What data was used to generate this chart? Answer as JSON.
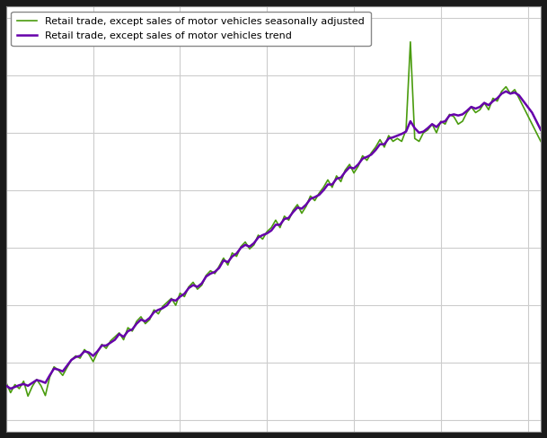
{
  "legend_sa": "Retail trade, except sales of motor vehicles seasonally adjusted",
  "legend_trend": "Retail trade, except sales of motor vehicles trend",
  "color_sa": "#4a9c0e",
  "color_trend": "#6600aa",
  "background_color": "#ffffff",
  "grid_color": "#cccccc",
  "linewidth_sa": 1.2,
  "linewidth_trend": 1.8,
  "seasonally_adjusted": [
    96.5,
    94.8,
    96.2,
    95.5,
    96.8,
    94.2,
    95.9,
    97.1,
    96.0,
    94.3,
    97.5,
    99.3,
    98.7,
    97.8,
    99.2,
    100.5,
    101.2,
    100.8,
    102.3,
    101.5,
    100.2,
    101.8,
    103.2,
    102.5,
    103.8,
    104.5,
    105.2,
    104.0,
    106.1,
    105.5,
    107.2,
    108.0,
    106.8,
    107.5,
    109.2,
    108.5,
    109.8,
    110.5,
    111.2,
    110.0,
    112.1,
    111.5,
    113.2,
    114.0,
    112.8,
    113.5,
    115.2,
    116.0,
    115.5,
    116.8,
    118.2,
    117.0,
    119.1,
    118.5,
    120.2,
    121.0,
    119.8,
    120.5,
    122.2,
    121.5,
    122.8,
    123.5,
    124.8,
    123.5,
    125.5,
    124.8,
    126.5,
    127.5,
    126.0,
    127.2,
    129.0,
    128.2,
    129.5,
    130.5,
    131.8,
    130.5,
    132.5,
    131.5,
    133.5,
    134.5,
    133.0,
    134.2,
    136.0,
    135.2,
    136.5,
    137.5,
    138.8,
    137.5,
    139.5,
    138.5,
    139.0,
    138.5,
    140.5,
    155.8,
    139.0,
    138.5,
    140.0,
    140.5,
    141.5,
    140.0,
    142.0,
    141.5,
    143.2,
    142.8,
    141.5,
    142.0,
    143.5,
    144.5,
    143.5,
    144.0,
    145.2,
    144.0,
    146.0,
    145.5,
    147.2,
    148.0,
    146.8,
    147.5,
    146.0,
    144.5,
    143.0,
    141.5,
    140.0,
    138.5
  ],
  "trend": [
    96.0,
    95.5,
    95.8,
    96.1,
    96.3,
    96.0,
    96.5,
    97.0,
    96.8,
    96.5,
    97.8,
    99.0,
    98.8,
    98.5,
    99.5,
    100.5,
    101.0,
    101.2,
    102.0,
    101.8,
    101.2,
    102.0,
    103.0,
    103.0,
    103.5,
    104.0,
    105.0,
    104.5,
    105.5,
    105.8,
    106.8,
    107.5,
    107.2,
    107.8,
    108.8,
    109.2,
    109.5,
    110.0,
    111.0,
    110.8,
    111.5,
    112.0,
    113.0,
    113.5,
    113.2,
    113.8,
    115.0,
    115.5,
    115.8,
    116.5,
    117.8,
    117.5,
    118.5,
    119.0,
    120.0,
    120.5,
    120.2,
    120.8,
    121.8,
    122.2,
    122.5,
    123.0,
    124.0,
    124.0,
    125.0,
    125.2,
    126.2,
    127.0,
    126.8,
    127.5,
    128.5,
    128.8,
    129.2,
    130.0,
    131.0,
    131.0,
    132.0,
    132.2,
    133.2,
    134.0,
    133.8,
    134.5,
    135.5,
    135.8,
    136.2,
    137.0,
    138.0,
    138.0,
    139.0,
    139.2,
    139.5,
    139.8,
    140.2,
    142.0,
    140.8,
    140.0,
    140.2,
    140.8,
    141.5,
    141.0,
    141.8,
    142.0,
    143.0,
    143.2,
    143.0,
    143.2,
    143.8,
    144.5,
    144.2,
    144.5,
    145.2,
    144.8,
    145.5,
    146.0,
    146.8,
    147.2,
    146.8,
    147.0,
    146.5,
    145.5,
    144.5,
    143.5,
    142.0,
    140.5
  ],
  "ylim": [
    88,
    162
  ],
  "n_points": 124
}
